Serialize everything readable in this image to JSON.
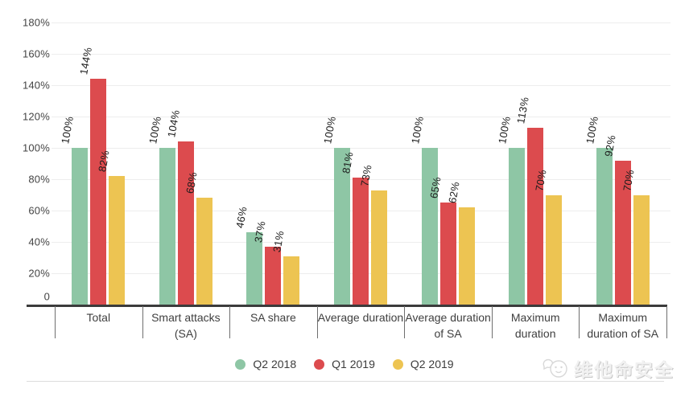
{
  "chart_data": {
    "type": "bar",
    "title": "",
    "xlabel": "",
    "ylabel": "",
    "ylim": [
      0,
      180
    ],
    "grid": true,
    "legend_position": "bottom",
    "value_suffix": "%",
    "y_ticks": [
      {
        "pct": 180,
        "label": "180%"
      },
      {
        "pct": 160,
        "label": "160%"
      },
      {
        "pct": 140,
        "label": "140%"
      },
      {
        "pct": 120,
        "label": "120%"
      },
      {
        "pct": 100,
        "label": "100%"
      },
      {
        "pct": 80,
        "label": "80%"
      },
      {
        "pct": 60,
        "label": "60%"
      },
      {
        "pct": 40,
        "label": "40%"
      },
      {
        "pct": 20,
        "label": "20%"
      },
      {
        "pct": 0,
        "label": "0"
      }
    ],
    "categories": [
      "Total",
      "Smart attacks\n(SA)",
      "SA share",
      "Average duration",
      "Average duration\nof SA",
      "Maximum\nduration",
      "Maximum\nduration of SA"
    ],
    "series": [
      {
        "name": "Q2 2018",
        "color": "#8ec6a5",
        "values": [
          100,
          100,
          46,
          100,
          100,
          100,
          100
        ]
      },
      {
        "name": "Q1 2019",
        "color": "#dc4b4e",
        "values": [
          144,
          104,
          37,
          81,
          65,
          113,
          92
        ]
      },
      {
        "name": "Q2 2019",
        "color": "#edc452",
        "values": [
          82,
          68,
          31,
          73,
          62,
          70,
          70
        ]
      }
    ],
    "annotations_visible": true
  },
  "watermark": {
    "text": "维他命安全",
    "icon": "chat-face-logo"
  }
}
